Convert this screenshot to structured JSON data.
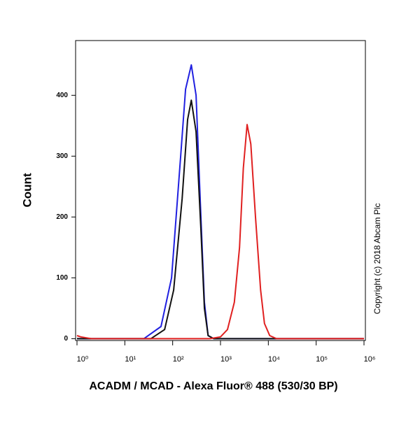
{
  "chart_data": {
    "type": "line",
    "x_label": "ACADM / MCAD - Alexa Fluor® 488 (530/30 BP)",
    "y_label": "Count",
    "annotation": "Copyright (c) 2018 Abcam Plc",
    "xscale": "log",
    "xlim": [
      1,
      1000000
    ],
    "xticks": [
      {
        "value": 1,
        "label": "10⁰"
      },
      {
        "value": 10,
        "label": "10¹"
      },
      {
        "value": 100,
        "label": "10²"
      },
      {
        "value": 1000,
        "label": "10³"
      },
      {
        "value": 10000,
        "label": "10⁴"
      },
      {
        "value": 100000,
        "label": "10⁵"
      },
      {
        "value": 1000000,
        "label": "10⁶"
      }
    ],
    "ylim": [
      -3,
      490
    ],
    "yticks": [
      0,
      100,
      200,
      300,
      400
    ],
    "series": [
      {
        "color": "#2020e0",
        "x": [
          1,
          10,
          25,
          57,
          95,
          147,
          186,
          245,
          309,
          389,
          460,
          550,
          720,
          1000000
        ],
        "values": [
          0,
          0,
          0,
          20,
          100,
          300,
          410,
          450,
          400,
          200,
          60,
          5,
          0,
          0
        ]
      },
      {
        "color": "#111111",
        "x": [
          1,
          10,
          35,
          68,
          105,
          158,
          205,
          245,
          309,
          389,
          460,
          550,
          720,
          1000000
        ],
        "values": [
          0,
          0,
          0,
          15,
          80,
          230,
          360,
          392,
          340,
          180,
          50,
          5,
          0,
          0
        ]
      },
      {
        "color": "#e02020",
        "x": [
          1,
          1.2,
          2,
          10,
          600,
          1000,
          1400,
          1950,
          2500,
          3000,
          3600,
          4300,
          5400,
          6900,
          8300,
          10700,
          14800,
          1000000
        ],
        "values": [
          5,
          3,
          0,
          0,
          0,
          3,
          15,
          60,
          150,
          280,
          352,
          320,
          200,
          80,
          25,
          5,
          0,
          0
        ]
      }
    ]
  }
}
